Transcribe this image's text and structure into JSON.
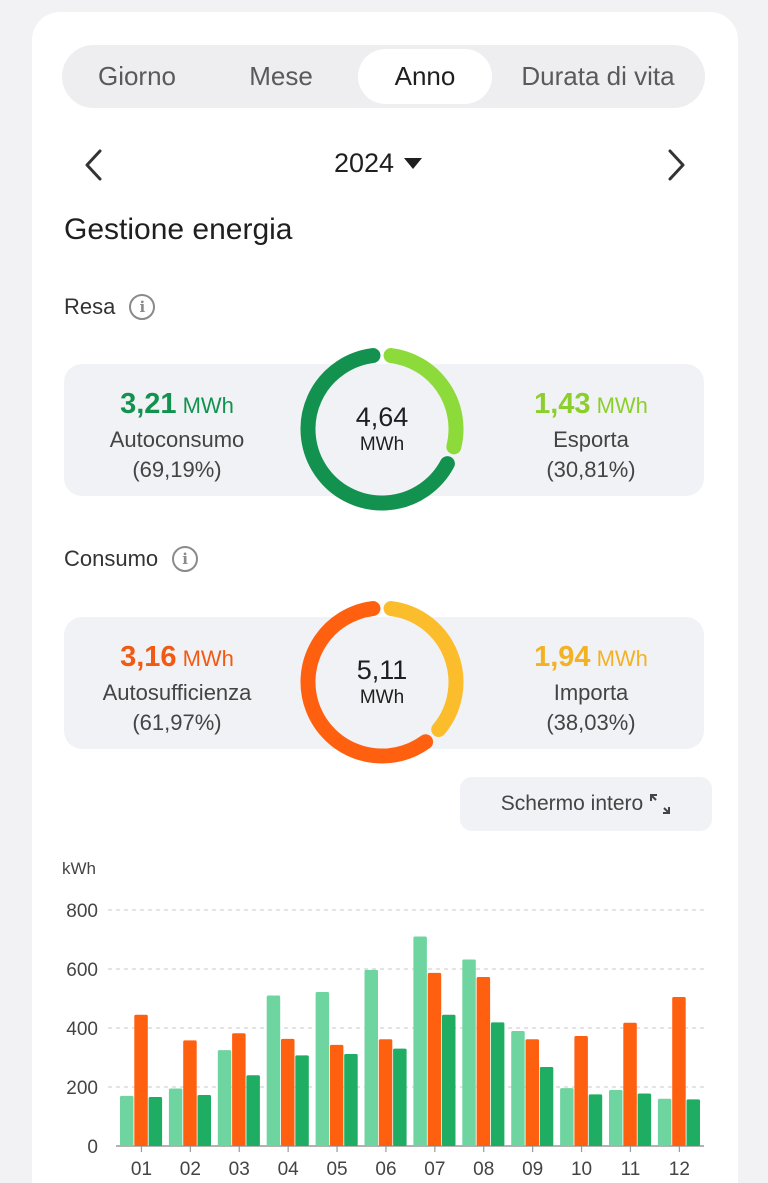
{
  "tabs": [
    {
      "label": "Giorno",
      "active": false
    },
    {
      "label": "Mese",
      "active": false
    },
    {
      "label": "Anno",
      "active": true
    },
    {
      "label": "Durata di vita",
      "active": false
    }
  ],
  "period": {
    "year": "2024"
  },
  "section_title": "Gestione energia",
  "resa": {
    "label": "Resa",
    "total_value": "4,64",
    "total_unit": "MWh",
    "left": {
      "value": "3,21",
      "unit": "MWh",
      "name": "Autoconsumo",
      "pct": "(69,19%)",
      "fraction": 0.6919,
      "color": "#13924f"
    },
    "right": {
      "value": "1,43",
      "unit": "MWh",
      "name": "Esporta",
      "pct": "(30,81%)",
      "fraction": 0.3081,
      "color": "#8ddb3b"
    }
  },
  "consumo": {
    "label": "Consumo",
    "total_value": "5,11",
    "total_unit": "MWh",
    "left": {
      "value": "3,16",
      "unit": "MWh",
      "name": "Autosufficienza",
      "pct": "(61,97%)",
      "fraction": 0.6197,
      "color": "#ff6010"
    },
    "right": {
      "value": "1,94",
      "unit": "MWh",
      "name": "Importa",
      "pct": "(38,03%)",
      "fraction": 0.3803,
      "color": "#fbbd2c"
    }
  },
  "fullscreen_label": "Schermo intero",
  "chart_data": {
    "type": "bar",
    "ylabel": "kWh",
    "ylim": [
      0,
      800
    ],
    "yticks": [
      "0",
      "200",
      "400",
      "600",
      "800"
    ],
    "grid": true,
    "categories": [
      "01",
      "02",
      "03",
      "04",
      "05",
      "06",
      "07",
      "08",
      "09",
      "10",
      "11",
      "12"
    ],
    "series": [
      {
        "color": "#6fd5a0",
        "values": [
          170,
          195,
          325,
          510,
          522,
          597,
          710,
          632,
          390,
          196,
          190,
          160
        ]
      },
      {
        "color": "#ff6010",
        "values": [
          445,
          358,
          382,
          363,
          343,
          362,
          587,
          573,
          362,
          373,
          418,
          505
        ]
      },
      {
        "color": "#1fad63",
        "values": [
          166,
          173,
          240,
          307,
          312,
          330,
          445,
          419,
          268,
          175,
          178,
          158
        ]
      }
    ]
  }
}
